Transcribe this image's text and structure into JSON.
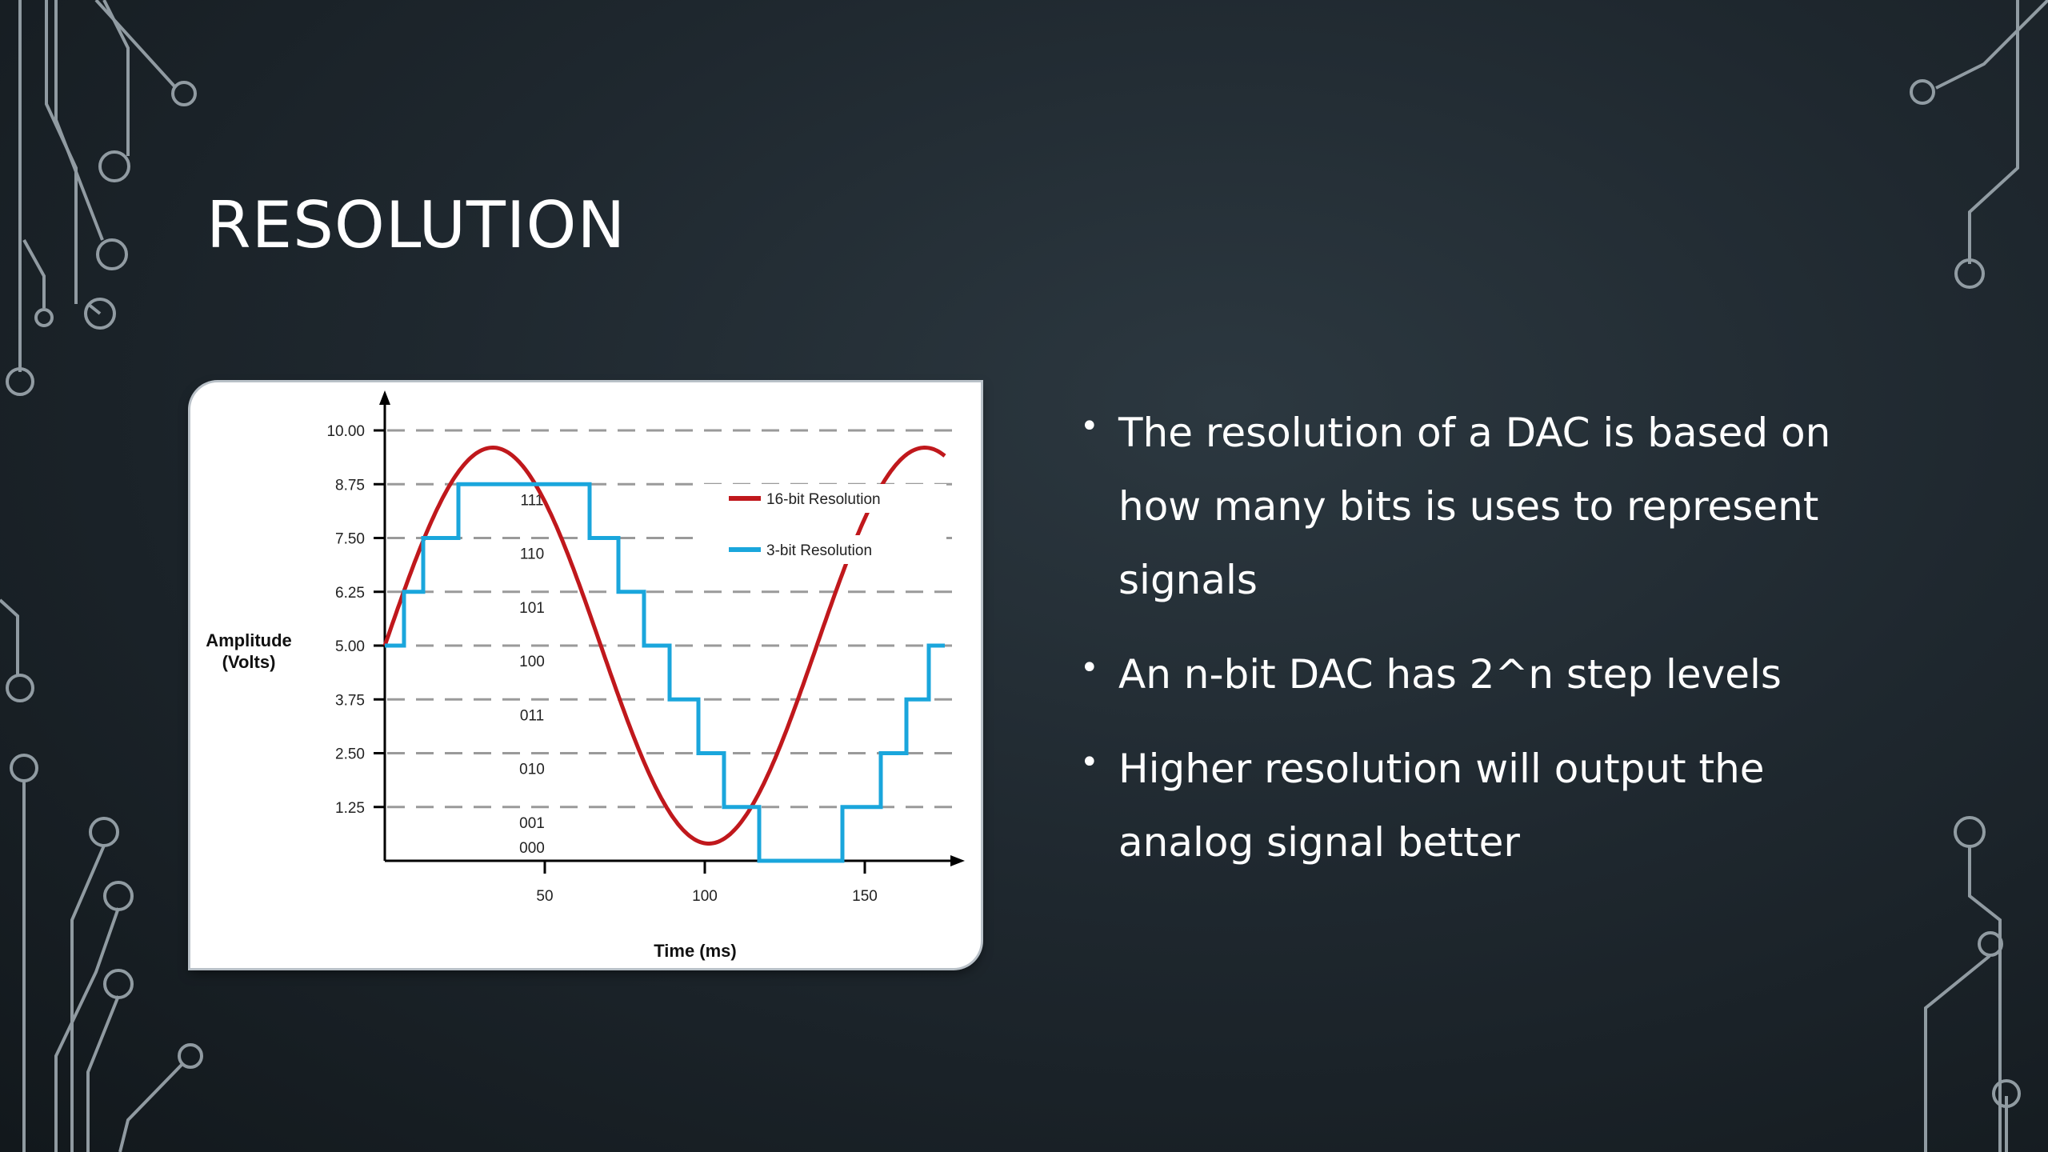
{
  "slide": {
    "title": "RESOLUTION"
  },
  "bullets": [
    {
      "text": "The resolution of a DAC is based on how many bits is uses to represent signals"
    },
    {
      "text": "An n-bit DAC has 2^n step levels"
    },
    {
      "text": "Higher resolution will output the analog signal better"
    }
  ],
  "bullet_symbol": "•",
  "colors": {
    "series_16bit": "#c0181c",
    "series_3bit": "#1aa6dc",
    "text": "#ffffff",
    "circuit": "#a6b1b8"
  },
  "chart_data": {
    "type": "line",
    "xlabel": "Time (ms)",
    "ylabel": "Amplitude\n(Volts)",
    "xlim": [
      0,
      175
    ],
    "ylim": [
      0,
      10
    ],
    "x_ticks": [
      50,
      100,
      150
    ],
    "y_ticks": [
      "1.25",
      "2.50",
      "3.75",
      "5.00",
      "6.25",
      "7.50",
      "8.75",
      "10.00"
    ],
    "grid": "horizontal dashed",
    "legend_position": "top-right",
    "level_codes": [
      {
        "code": "000",
        "level": 0
      },
      {
        "code": "001",
        "level": 1.25
      },
      {
        "code": "010",
        "level": 2.5
      },
      {
        "code": "011",
        "level": 3.75
      },
      {
        "code": "100",
        "level": 5.0
      },
      {
        "code": "101",
        "level": 6.25
      },
      {
        "code": "110",
        "level": 7.5
      },
      {
        "code": "111",
        "level": 8.75
      }
    ],
    "series": [
      {
        "name": "16-bit Resolution",
        "kind": "sine",
        "offset": 5,
        "amplitude": 4.6,
        "period": 135,
        "x_range": [
          0,
          175
        ]
      },
      {
        "name": "3-bit Resolution",
        "kind": "step",
        "steps": [
          [
            0,
            5.0
          ],
          [
            6,
            6.25
          ],
          [
            12,
            7.5
          ],
          [
            23,
            8.75
          ],
          [
            64,
            7.5
          ],
          [
            73,
            6.25
          ],
          [
            81,
            5.0
          ],
          [
            89,
            3.75
          ],
          [
            98,
            2.5
          ],
          [
            106,
            1.25
          ],
          [
            117,
            0
          ],
          [
            143,
            1.25
          ],
          [
            155,
            2.5
          ],
          [
            163,
            3.75
          ],
          [
            170,
            5.0
          ],
          [
            175,
            5.0
          ]
        ]
      }
    ]
  }
}
